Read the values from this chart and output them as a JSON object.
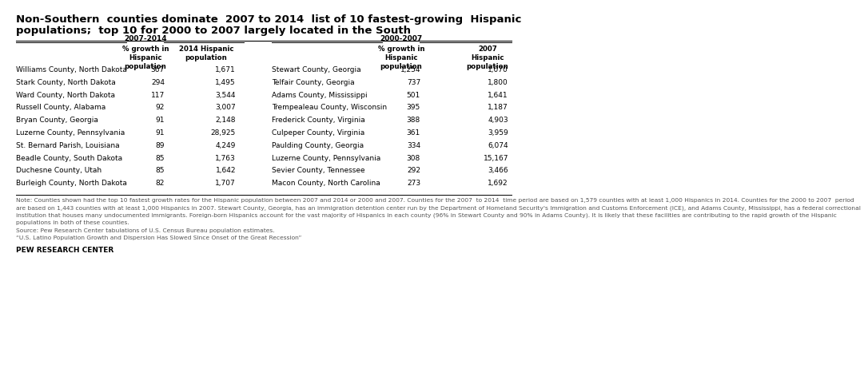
{
  "title_line1": "Non-Southern  counties dominate  2007 to 2014  list of 10 fastest-growing  Hispanic",
  "title_line2": "populations;  top 10 for 2000 to 2007 largely located in the South",
  "period1_label": "2007-2014",
  "period2_label": "2000-2007",
  "left_counties": [
    "Williams County, North Dakota",
    "Stark County, North Dakota",
    "Ward County, North Dakota",
    "Russell County, Alabama",
    "Bryan County, Georgia",
    "Luzerne County, Pennsylvania",
    "St. Bernard Parish, Louisiana",
    "Beadle County, South Dakota",
    "Duchesne County, Utah",
    "Burleigh County, North Dakota"
  ],
  "left_growth": [
    "367",
    "294",
    "117",
    "92",
    "91",
    "91",
    "89",
    "85",
    "85",
    "82"
  ],
  "left_2014pop": [
    "1,671",
    "1,495",
    "3,544",
    "3,007",
    "2,148",
    "28,925",
    "4,249",
    "1,763",
    "1,642",
    "1,707"
  ],
  "right_counties": [
    "Stewart County, Georgia",
    "Telfair County, Georgia",
    "Adams County, Mississippi",
    "Trempealeau County, Wisconsin",
    "Frederick County, Virginia",
    "Culpeper County, Virginia",
    "Paulding County, Georgia",
    "Luzerne County, Pennsylvania",
    "Sevier County, Tennessee",
    "Macon County, North Carolina"
  ],
  "right_growth": [
    "1,254",
    "737",
    "501",
    "395",
    "388",
    "361",
    "334",
    "308",
    "292",
    "273"
  ],
  "right_2007pop": [
    "1,070",
    "1,800",
    "1,641",
    "1,187",
    "4,903",
    "3,959",
    "6,074",
    "15,167",
    "3,466",
    "1,692"
  ],
  "note_lines": [
    "Note: Counties shown had the top 10 fastest growth rates for the Hispanic population between 2007 and 2014 or 2000 and 2007. Counties for the 2007  to 2014  time period are based on 1,579 counties with at least 1,000 Hispanics in 2014. Counties for the 2000 to 2007  period",
    "are based on 1,443 counties with at least 1,000 Hispanics in 2007. Stewart County, Georgia, has an immigration detention center run by the Department of Homeland Security's Immigration and Customs Enforcement (ICE), and Adams County, Mississippi, has a federal correctional",
    "institution that houses many undocumented immigrants. Foreign-born Hispanics account for the vast majority of Hispanics in each county (96% in Stewart County and 90% in Adams County). It is likely that these facilities are contributing to the rapid growth of the Hispanic",
    "populations in both of these counties.",
    "Source: Pew Research Center tabulations of U.S. Census Bureau population estimates.",
    "“U.S. Latino Population Growth and Dispersion Has Slowed Since Onset of the Great Recession”"
  ],
  "source_label": "PEW RESEARCH CENTER",
  "bg_color": "#ffffff",
  "title_color": "#000000",
  "text_color": "#000000",
  "header_color": "#000000",
  "note_color": "#555555"
}
